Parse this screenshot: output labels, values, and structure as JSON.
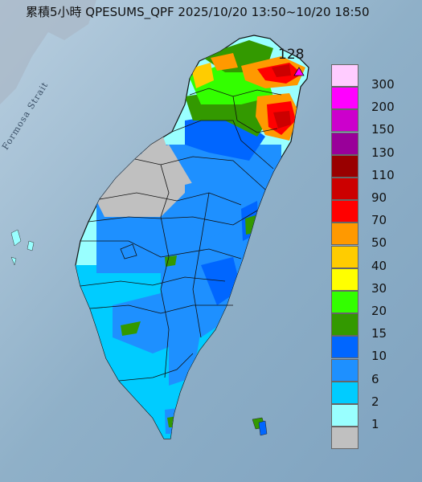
{
  "title": "累積5小時 QPESUMS_QPF 2025/10/20 13:50~10/20 18:50",
  "map_label": "Formosa Strait",
  "max_label": "128",
  "legend": {
    "items": [
      {
        "label": "300",
        "color": "#ffccff"
      },
      {
        "label": "200",
        "color": "#ff00ff"
      },
      {
        "label": "150",
        "color": "#cc00cc"
      },
      {
        "label": "130",
        "color": "#990099"
      },
      {
        "label": "110",
        "color": "#990000"
      },
      {
        "label": "90",
        "color": "#cc0000"
      },
      {
        "label": "70",
        "color": "#ff0000"
      },
      {
        "label": "50",
        "color": "#ff9900"
      },
      {
        "label": "40",
        "color": "#ffcc00"
      },
      {
        "label": "30",
        "color": "#ffff00"
      },
      {
        "label": "20",
        "color": "#33ff00"
      },
      {
        "label": "15",
        "color": "#339900"
      },
      {
        "label": "10",
        "color": "#0066ff"
      },
      {
        "label": "6",
        "color": "#1e90ff"
      },
      {
        "label": "2",
        "color": "#00ccff"
      },
      {
        "label": "1",
        "color": "#99ffff"
      },
      {
        "label": "",
        "color": "#c0c0c0"
      }
    ]
  }
}
